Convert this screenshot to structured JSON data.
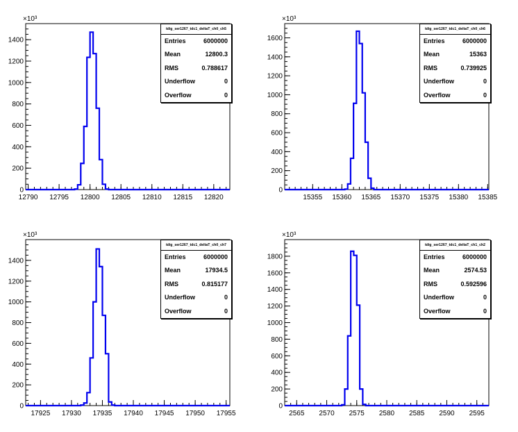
{
  "colors": {
    "histogram": "#0000ee",
    "axis": "#000000",
    "background": "#ffffff"
  },
  "stat_labels": {
    "entries": "Entries",
    "mean": "Mean",
    "rms": "RMS",
    "underflow": "Underflow",
    "overflow": "Overflow"
  },
  "panels": [
    {
      "name": "tdig_ser1267_tdc1_deltaT_ch0_ch5",
      "stats": {
        "entries": "6000000",
        "mean": "12800.3",
        "rms": "0.788617",
        "underflow": "0",
        "overflow": "0"
      }
    },
    {
      "name": "tdig_ser1267_tdc1_deltaT_ch0_ch6",
      "stats": {
        "entries": "6000000",
        "mean": "15363",
        "rms": "0.739925",
        "underflow": "0",
        "overflow": "0"
      }
    },
    {
      "name": "tdig_ser1267_tdc1_deltaT_ch0_ch7",
      "stats": {
        "entries": "6000000",
        "mean": "17934.5",
        "rms": "0.815177",
        "underflow": "0",
        "overflow": "0"
      }
    },
    {
      "name": "tdig_ser1267_tdc1_deltaT_ch1_ch2",
      "stats": {
        "entries": "6000000",
        "mean": "2574.53",
        "rms": "0.592596",
        "underflow": "0",
        "overflow": "0"
      }
    }
  ],
  "chart_data": [
    {
      "type": "bar",
      "title": "tdig_ser1267_tdc1_deltaT_ch0_ch5",
      "xlim": [
        12789.6,
        12822.6
      ],
      "ylim": [
        0,
        1550
      ],
      "y_multiplier_label": "×10³",
      "x_ticks": [
        12790,
        12795,
        12800,
        12805,
        12810,
        12815,
        12820
      ],
      "y_ticks": [
        0,
        200,
        400,
        600,
        800,
        1000,
        1200,
        1400
      ],
      "bin_width": 0.5,
      "bins": [
        {
          "x": 12797.5,
          "y": 5
        },
        {
          "x": 12798.0,
          "y": 45
        },
        {
          "x": 12798.5,
          "y": 245
        },
        {
          "x": 12799.0,
          "y": 590
        },
        {
          "x": 12799.5,
          "y": 1235
        },
        {
          "x": 12800.0,
          "y": 1470
        },
        {
          "x": 12800.5,
          "y": 1270
        },
        {
          "x": 12801.0,
          "y": 760
        },
        {
          "x": 12801.5,
          "y": 280
        },
        {
          "x": 12802.0,
          "y": 50
        },
        {
          "x": 12802.5,
          "y": 5
        }
      ]
    },
    {
      "type": "bar",
      "title": "tdig_ser1267_tdc1_deltaT_ch0_ch6",
      "xlim": [
        15350.2,
        15385.2
      ],
      "ylim": [
        0,
        1750
      ],
      "y_multiplier_label": "×10³",
      "x_ticks": [
        15355,
        15360,
        15365,
        15370,
        15375,
        15380,
        15385
      ],
      "y_ticks": [
        0,
        200,
        400,
        600,
        800,
        1000,
        1200,
        1400,
        1600
      ],
      "bin_width": 0.5,
      "bins": [
        {
          "x": 15360.5,
          "y": 5
        },
        {
          "x": 15361.0,
          "y": 60
        },
        {
          "x": 15361.5,
          "y": 330
        },
        {
          "x": 15362.0,
          "y": 910
        },
        {
          "x": 15362.5,
          "y": 1670
        },
        {
          "x": 15363.0,
          "y": 1540
        },
        {
          "x": 15363.5,
          "y": 1020
        },
        {
          "x": 15364.0,
          "y": 500
        },
        {
          "x": 15364.5,
          "y": 120
        },
        {
          "x": 15365.0,
          "y": 15
        }
      ]
    },
    {
      "type": "bar",
      "title": "tdig_ser1267_tdc1_deltaT_ch0_ch7",
      "xlim": [
        17922.6,
        17955.6
      ],
      "ylim": [
        0,
        1600
      ],
      "y_multiplier_label": "×10³",
      "x_ticks": [
        17925,
        17930,
        17935,
        17940,
        17945,
        17950,
        17955
      ],
      "y_ticks": [
        0,
        200,
        400,
        600,
        800,
        1000,
        1200,
        1400
      ],
      "bin_width": 0.5,
      "bins": [
        {
          "x": 17931.5,
          "y": 5
        },
        {
          "x": 17932.0,
          "y": 25
        },
        {
          "x": 17932.5,
          "y": 125
        },
        {
          "x": 17933.0,
          "y": 460
        },
        {
          "x": 17933.5,
          "y": 1000
        },
        {
          "x": 17934.0,
          "y": 1510
        },
        {
          "x": 17934.5,
          "y": 1340
        },
        {
          "x": 17935.0,
          "y": 870
        },
        {
          "x": 17935.5,
          "y": 500
        },
        {
          "x": 17936.0,
          "y": 35
        },
        {
          "x": 17936.5,
          "y": 5
        }
      ]
    },
    {
      "type": "bar",
      "title": "tdig_ser1267_tdc1_deltaT_ch1_ch2",
      "xlim": [
        2563.0,
        2597.0
      ],
      "ylim": [
        0,
        2000
      ],
      "y_multiplier_label": "×10³",
      "x_ticks": [
        2565,
        2570,
        2575,
        2580,
        2585,
        2590,
        2595
      ],
      "y_ticks": [
        0,
        200,
        400,
        600,
        800,
        1000,
        1200,
        1400,
        1600,
        1800
      ],
      "bin_width": 0.5,
      "bins": [
        {
          "x": 2572.5,
          "y": 10
        },
        {
          "x": 2573.0,
          "y": 200
        },
        {
          "x": 2573.5,
          "y": 840
        },
        {
          "x": 2574.0,
          "y": 1860
        },
        {
          "x": 2574.5,
          "y": 1810
        },
        {
          "x": 2575.0,
          "y": 1210
        },
        {
          "x": 2575.5,
          "y": 200
        },
        {
          "x": 2576.0,
          "y": 15
        }
      ]
    }
  ]
}
